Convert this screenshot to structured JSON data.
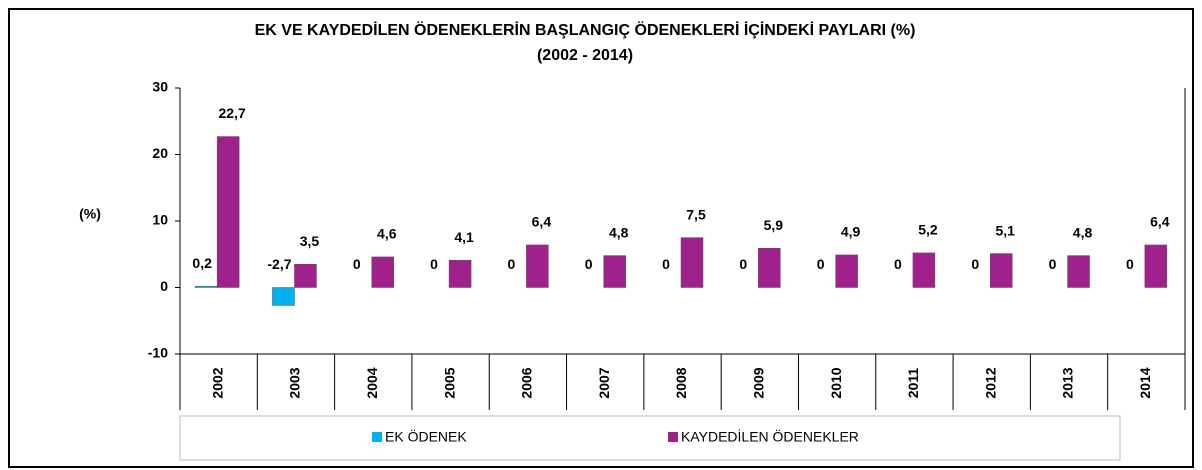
{
  "chart_data": {
    "type": "bar",
    "title": "EK VE KAYDEDİLEN ÖDENEKLERİN BAŞLANGIÇ ÖDENEKLERİ İÇİNDEKİ PAYLARI (%)",
    "subtitle": "(2002 - 2014)",
    "y_label": "(%)",
    "categories": [
      "2002",
      "2003",
      "2004",
      "2005",
      "2006",
      "2007",
      "2008",
      "2009",
      "2010",
      "2011",
      "2012",
      "2013",
      "2014"
    ],
    "series": [
      {
        "name": "EK ÖDENEK",
        "color": "#00b0f0",
        "values": [
          0.2,
          -2.7,
          0,
          0,
          0,
          0,
          0,
          0,
          0,
          0,
          0,
          0,
          0
        ],
        "value_labels": [
          "0,2",
          "-2,7",
          "0",
          "0",
          "0",
          "0",
          "0",
          "0",
          "0",
          "0",
          "0",
          "0",
          "0"
        ]
      },
      {
        "name": "KAYDEDİLEN ÖDENEKLER",
        "color": "#a0208c",
        "values": [
          22.7,
          3.5,
          4.6,
          4.1,
          6.4,
          4.8,
          7.5,
          5.9,
          4.9,
          5.2,
          5.1,
          4.8,
          6.4
        ],
        "value_labels": [
          "22,7",
          "3,5",
          "4,6",
          "4,1",
          "6,4",
          "4,8",
          "7,5",
          "5,9",
          "4,9",
          "5,2",
          "5,1",
          "4,8",
          "6,4"
        ]
      }
    ],
    "ylim": [
      -10,
      30
    ],
    "yticks": [
      -10,
      0,
      10,
      20,
      30
    ]
  }
}
